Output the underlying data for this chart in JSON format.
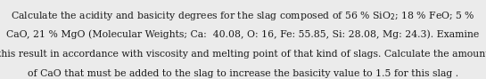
{
  "line1": "Calculate the acidity and basicity degrees for the slag composed of 56 % SiO$_2$; 18 % FeO; 5 %",
  "line2": "CaO, 21 % MgO (Molecular Weights; Ca:  40.08, O: 16, Fe: 55.85, Si: 28.08, Mg: 24.3). Examine",
  "line3": "this result in accordance with viscosity and melting point of that kind of slags. Calculate the amount",
  "line4": "of CaO that must be added to the slag to increase the basicity value to 1.5 for this slag .",
  "font_size": 7.8,
  "font_family": "serif",
  "text_color": "#1a1a1a",
  "background_color": "#ebebeb",
  "figwidth": 5.45,
  "figheight": 0.89,
  "dpi": 100
}
